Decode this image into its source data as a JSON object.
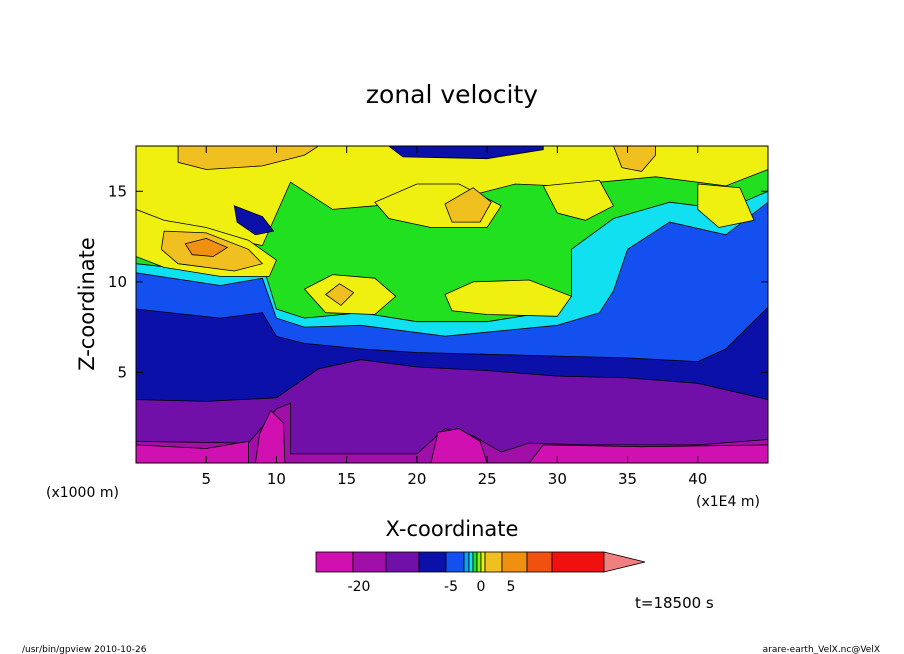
{
  "chart_data": {
    "type": "heatmap",
    "title": "zonal velocity",
    "xlabel": "X-coordinate",
    "ylabel": "Z-coordinate",
    "x_scale_label": "(x1000 m)",
    "x_unit_label": "(x1E4 m)",
    "xlim": [
      0,
      45
    ],
    "ylim": [
      0,
      17.5
    ],
    "x_ticks": [
      "5",
      "10",
      "15",
      "20",
      "25",
      "30",
      "35",
      "40"
    ],
    "y_ticks": [
      "5",
      "10",
      "15"
    ],
    "colorbar": {
      "tick_labels": [
        "-20",
        "-5",
        "0",
        "5"
      ],
      "colors": [
        "#d010b0",
        "#a010a8",
        "#7010a8",
        "#0a10a8",
        "#1450f0",
        "#10a0f0",
        "#10e0f0",
        "#20e020",
        "#90f010",
        "#f0f010",
        "#f0c020",
        "#f09010",
        "#f05010",
        "#f01010",
        "#f08080"
      ]
    },
    "bands": [
      {
        "level": "-20",
        "color": "#d010b0"
      },
      {
        "level": "-15",
        "color": "#a010a8"
      },
      {
        "level": "-10",
        "color": "#7010a8"
      },
      {
        "level": "-5",
        "color": "#0a10a8"
      },
      {
        "level": "-2",
        "color": "#1450f0"
      },
      {
        "level": "-1",
        "color": "#10e0f0"
      },
      {
        "level": "0",
        "color": "#20e020"
      },
      {
        "level": "1",
        "color": "#f0f010"
      },
      {
        "level": "2",
        "color": "#f0c020"
      },
      {
        "level": "5",
        "color": "#f09010"
      }
    ],
    "time_label": "t=18500 s"
  },
  "footer": {
    "left": "/usr/bin/gpview   2010-10-26",
    "right": "arare-earth_VelX.nc@VelX"
  }
}
